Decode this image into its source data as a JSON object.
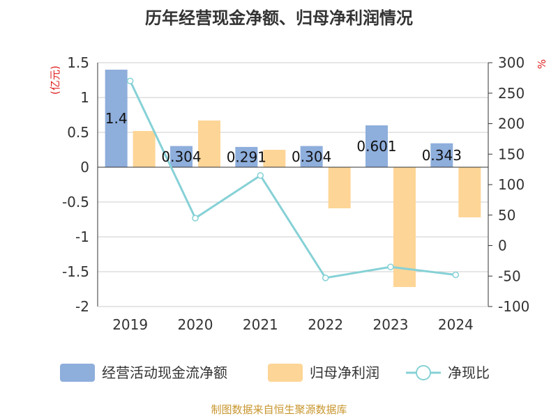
{
  "chart_data": {
    "type": "bar",
    "title": "历年经营现金净额、归母净利润情况",
    "categories": [
      "2019",
      "2020",
      "2021",
      "2022",
      "2023",
      "2024"
    ],
    "series": [
      {
        "name": "经营活动现金流净额",
        "type": "bar",
        "axis": "left",
        "color": "#8eaedc",
        "values": [
          1.4,
          0.304,
          0.291,
          0.304,
          0.601,
          0.343
        ],
        "labels": [
          "1.4",
          "0.304",
          "0.291",
          "0.304",
          "0.601",
          "0.343"
        ]
      },
      {
        "name": "归母净利润",
        "type": "bar",
        "axis": "left",
        "color": "#fdd596",
        "values": [
          0.52,
          0.67,
          0.25,
          -0.59,
          -1.72,
          -0.72
        ]
      },
      {
        "name": "净现比",
        "type": "line",
        "axis": "right",
        "color": "#86d1d6",
        "values": [
          270,
          45,
          115,
          -53,
          -35,
          -48
        ]
      }
    ],
    "y_left": {
      "unit": "(亿元)",
      "ylim": [
        -2,
        1.5
      ],
      "ticks": [
        -2,
        -1.5,
        -1,
        -0.5,
        0,
        0.5,
        1,
        1.5
      ],
      "tick_labels": [
        "-2",
        "-1.5",
        "-1",
        "-0.5",
        "0",
        "0.5",
        "1",
        "1.5"
      ]
    },
    "y_right": {
      "unit": "%",
      "ylim": [
        -100,
        300
      ],
      "ticks": [
        -100,
        -50,
        0,
        50,
        100,
        150,
        200,
        250,
        300
      ],
      "tick_labels": [
        "-100",
        "-50",
        "0",
        "50",
        "100",
        "150",
        "200",
        "250",
        "300"
      ]
    },
    "grid": true,
    "legend_position": "bottom"
  },
  "source": "制图数据来自恒生聚源数据库"
}
